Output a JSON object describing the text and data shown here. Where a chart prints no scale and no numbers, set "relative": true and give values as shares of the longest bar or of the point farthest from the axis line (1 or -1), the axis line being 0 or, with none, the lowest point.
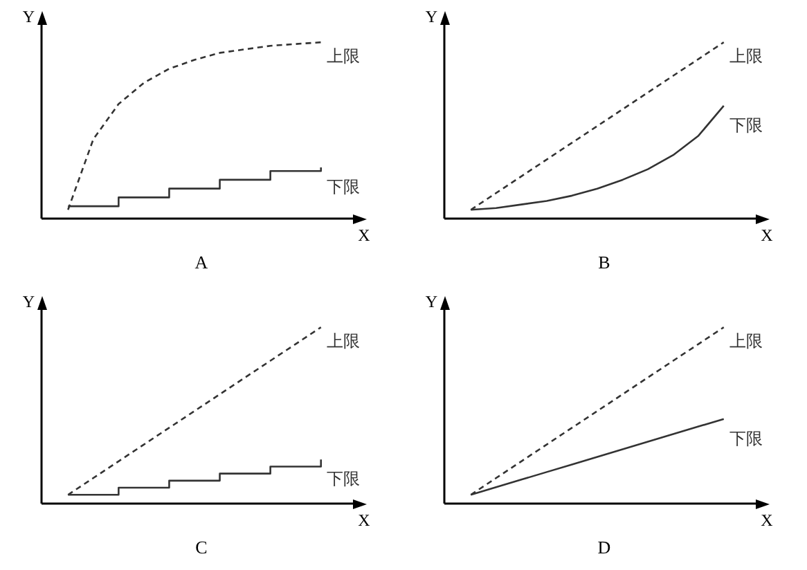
{
  "chart_data": [
    {
      "type": "line",
      "relative": true,
      "xlabel": "X",
      "ylabel": "Y",
      "annotations": [
        "A"
      ],
      "marker": "none",
      "categories": [
        null,
        null,
        null,
        null,
        null,
        null,
        null,
        null,
        null,
        null,
        null
      ],
      "series": [
        {
          "name": "上限",
          "color": "#333333",
          "line_style": "dashed",
          "values": [
            0.05,
            0.45,
            0.65,
            0.77,
            0.85,
            0.9,
            0.94,
            0.96,
            0.98,
            0.99,
            1.0
          ]
        },
        {
          "name": "下限",
          "type": "step",
          "color": "#333333",
          "line_style": "solid",
          "values": [
            0.07,
            0.07,
            0.12,
            0.12,
            0.17,
            0.17,
            0.22,
            0.22,
            0.27,
            0.27,
            0.29
          ]
        }
      ]
    },
    {
      "type": "line",
      "relative": true,
      "xlabel": "X",
      "ylabel": "Y",
      "annotations": [
        "B"
      ],
      "marker": "none",
      "categories": [
        null,
        null,
        null,
        null,
        null,
        null,
        null,
        null,
        null,
        null,
        null
      ],
      "series": [
        {
          "name": "上限",
          "color": "#333333",
          "line_style": "dashed",
          "values": [
            0.05,
            0.145,
            0.24,
            0.335,
            0.43,
            0.525,
            0.62,
            0.715,
            0.81,
            0.905,
            1.0
          ]
        },
        {
          "name": "下限",
          "color": "#333333",
          "line_style": "solid",
          "values": [
            0.05,
            0.06,
            0.08,
            0.1,
            0.13,
            0.17,
            0.22,
            0.28,
            0.36,
            0.47,
            0.64
          ]
        }
      ]
    },
    {
      "type": "line",
      "relative": true,
      "xlabel": "X",
      "ylabel": "Y",
      "annotations": [
        "C"
      ],
      "marker": "none",
      "categories": [
        null,
        null,
        null,
        null,
        null,
        null,
        null,
        null,
        null,
        null,
        null
      ],
      "series": [
        {
          "name": "上限",
          "color": "#333333",
          "line_style": "dashed",
          "values": [
            0.05,
            0.145,
            0.24,
            0.335,
            0.43,
            0.525,
            0.62,
            0.715,
            0.81,
            0.905,
            1.0
          ]
        },
        {
          "name": "下限",
          "type": "step",
          "color": "#333333",
          "line_style": "solid",
          "values": [
            0.05,
            0.05,
            0.09,
            0.09,
            0.13,
            0.13,
            0.17,
            0.17,
            0.21,
            0.21,
            0.25
          ]
        }
      ]
    },
    {
      "type": "line",
      "relative": true,
      "xlabel": "X",
      "ylabel": "Y",
      "annotations": [
        "D"
      ],
      "marker": "none",
      "categories": [
        null,
        null,
        null,
        null,
        null,
        null,
        null,
        null,
        null,
        null,
        null
      ],
      "series": [
        {
          "name": "上限",
          "color": "#333333",
          "line_style": "dashed",
          "values": [
            0.05,
            0.145,
            0.24,
            0.335,
            0.43,
            0.525,
            0.62,
            0.715,
            0.81,
            0.905,
            1.0
          ]
        },
        {
          "name": "下限",
          "color": "#333333",
          "line_style": "solid",
          "values": [
            0.05,
            0.093,
            0.136,
            0.179,
            0.222,
            0.265,
            0.308,
            0.351,
            0.394,
            0.437,
            0.48
          ]
        }
      ]
    }
  ]
}
